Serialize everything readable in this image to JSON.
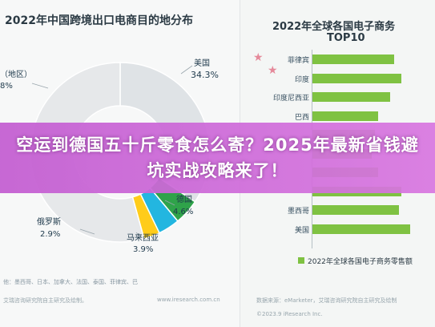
{
  "left_chart": {
    "title": "2022年中国跨境出口电商目的地分布",
    "slice_labels": [
      {
        "name": "美国",
        "value": "34.3%"
      },
      {
        "name": "德国",
        "value": "4.6%"
      },
      {
        "name": "马来西亚",
        "value": "3.9%"
      },
      {
        "name": "俄罗斯",
        "value": "2.9%"
      },
      {
        "name": "（地区）",
        "value": "8%"
      }
    ],
    "note": "他：墨西哥、日本、加拿大、法国、泰国、菲律宾、巴",
    "source": "艾瑞咨询研究院自主研究及绘制。",
    "watermark": "www.iresearch.com.cn"
  },
  "right_chart": {
    "title_line1": "2022年全球各国电子商务",
    "title_line2": "TOP10",
    "legend": "2022年全球各国电子商务零售额",
    "source_line1": "数据来源：eMarketer，艾瑞咨询研究院自主研究及绘制",
    "source_line2": "©2023.9 iResearch Inc."
  },
  "banner": {
    "text": "空运到德国五十斤零食怎么寄？2025年最新省钱避坑实战攻略来了！"
  },
  "colors": {
    "banner": "#cc6ad9",
    "bar": "#7fc242"
  },
  "chart_data": [
    {
      "type": "pie",
      "title": "2022年中国跨境出口电商目的地分布",
      "slices": [
        {
          "label": "美国",
          "value": 34.3
        },
        {
          "label": "德国",
          "value": 4.6
        },
        {
          "label": "马来西亚",
          "value": 3.9
        },
        {
          "label": "俄罗斯",
          "value": 2.9
        }
      ]
    },
    {
      "type": "bar",
      "orientation": "horizontal",
      "title": "2022年全球各国电子商务TOP10",
      "categories": [
        "菲律宾",
        "印度",
        "印度尼西亚",
        "巴西",
        "",
        "",
        "",
        "",
        "墨西哥",
        "美国"
      ],
      "series": [
        {
          "name": "2022年全球各国电子商务零售额",
          "values": [
            72,
            78,
            68,
            58,
            55,
            52,
            58,
            78,
            76,
            86
          ]
        }
      ]
    }
  ]
}
